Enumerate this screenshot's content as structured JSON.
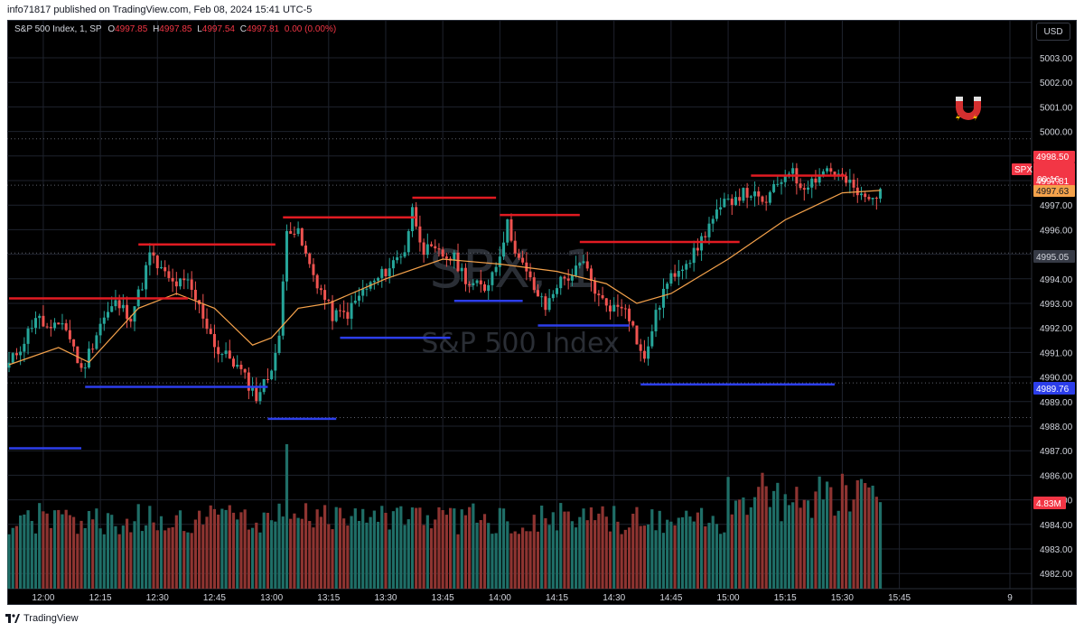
{
  "header": {
    "published": "info71817 published on TradingView.com, Feb 08, 2024 15:41 UTC-5"
  },
  "legend": {
    "symbol": "S&P 500 Index, 1, SP",
    "open_label": "O",
    "open": "4997.85",
    "high_label": "H",
    "high": "4997.85",
    "low_label": "L",
    "low": "4997.54",
    "close_label": "C",
    "close": "4997.81",
    "change": "0.00 (0.00%)"
  },
  "currency_button": "USD",
  "watermark": {
    "ticker": "SPX, 1",
    "name": "S&P 500 Index"
  },
  "footer": {
    "brand": "TradingView"
  },
  "icons": [
    "magnet-icon",
    "tradingview-logo-icon"
  ],
  "colors": {
    "up": "#26a69a",
    "down": "#ef5350",
    "ma": "#f5a24b",
    "resistance": "#e11b22",
    "support": "#2c3eea",
    "price_label": "#f23645",
    "ma_label": "#f5a24b",
    "support_label": "#2c3eea"
  },
  "chart_data": {
    "type": "candlestick",
    "x_ticks": [
      "12:00",
      "12:15",
      "12:30",
      "12:45",
      "13:00",
      "13:15",
      "13:30",
      "13:45",
      "14:00",
      "14:15",
      "14:30",
      "14:45",
      "15:00",
      "15:15",
      "15:30",
      "15:45",
      "9"
    ],
    "y_ticks": [
      "5003.00",
      "5002.00",
      "5001.00",
      "5000.00",
      "4999.00",
      "4998.00",
      "4997.00",
      "4996.00",
      "4995.00",
      "4994.00",
      "4993.00",
      "4992.00",
      "4991.00",
      "4990.00",
      "4989.00",
      "4988.00",
      "4987.00",
      "4986.00",
      "4985.00",
      "4984.00",
      "4983.00",
      "4982.00"
    ],
    "ylim": [
      4981.5,
      5003.6
    ],
    "y_tick_values": [
      5003,
      5002,
      5001,
      5000,
      4999,
      4998,
      4997,
      4996,
      4995,
      4994,
      4993,
      4992,
      4991,
      4990,
      4989,
      4988,
      4987,
      4986,
      4985,
      4984,
      4983,
      4982
    ],
    "price_path": [
      [
        "11:51",
        4990.5
      ],
      [
        "11:55",
        4991.5
      ],
      [
        "11:58",
        4992.5
      ],
      [
        "12:02",
        4991.8
      ],
      [
        "12:05",
        4992.3
      ],
      [
        "12:08",
        4991.2
      ],
      [
        "12:10",
        4990.2
      ],
      [
        "12:12",
        4991.0
      ],
      [
        "12:15",
        4992.2
      ],
      [
        "12:19",
        4993.0
      ],
      [
        "12:23",
        4992.5
      ],
      [
        "12:26",
        4993.8
      ],
      [
        "12:28",
        4995.0
      ],
      [
        "12:30",
        4994.5
      ],
      [
        "12:34",
        4993.8
      ],
      [
        "12:38",
        4993.8
      ],
      [
        "12:42",
        4992.5
      ],
      [
        "12:46",
        4991.0
      ],
      [
        "12:49",
        4990.8
      ],
      [
        "12:52",
        4990.2
      ],
      [
        "12:56",
        4989.2
      ],
      [
        "12:59",
        4990.0
      ],
      [
        "13:02",
        4991.5
      ],
      [
        "13:04",
        4996.2
      ],
      [
        "13:07",
        4995.8
      ],
      [
        "13:10",
        4994.5
      ],
      [
        "13:13",
        4993.5
      ],
      [
        "13:16",
        4992.5
      ],
      [
        "13:20",
        4992.6
      ],
      [
        "13:24",
        4993.5
      ],
      [
        "13:28",
        4994.0
      ],
      [
        "13:31",
        4994.5
      ],
      [
        "13:35",
        4995.2
      ],
      [
        "13:37",
        4996.8
      ],
      [
        "13:40",
        4995.2
      ],
      [
        "13:44",
        4995.0
      ],
      [
        "13:48",
        4994.8
      ],
      [
        "13:52",
        4993.8
      ],
      [
        "13:56",
        4993.6
      ],
      [
        "13:59",
        4994.6
      ],
      [
        "14:02",
        4996.2
      ],
      [
        "14:05",
        4994.8
      ],
      [
        "14:09",
        4993.6
      ],
      [
        "14:12",
        4992.8
      ],
      [
        "14:15",
        4993.8
      ],
      [
        "14:19",
        4994.2
      ],
      [
        "14:22",
        4994.6
      ],
      [
        "14:26",
        4993.2
      ],
      [
        "14:30",
        4992.8
      ],
      [
        "14:33",
        4993.0
      ],
      [
        "14:36",
        4991.5
      ],
      [
        "14:38",
        4990.6
      ],
      [
        "14:40",
        4992.0
      ],
      [
        "14:43",
        4993.5
      ],
      [
        "14:47",
        4994.5
      ],
      [
        "14:51",
        4995.0
      ],
      [
        "14:55",
        4996.2
      ],
      [
        "14:59",
        4997.0
      ],
      [
        "15:02",
        4997.4
      ],
      [
        "15:06",
        4997.5
      ],
      [
        "15:09",
        4997.0
      ],
      [
        "15:12",
        4997.6
      ],
      [
        "15:16",
        4998.5
      ],
      [
        "15:19",
        4997.8
      ],
      [
        "15:22",
        4998.0
      ],
      [
        "15:26",
        4998.5
      ],
      [
        "15:29",
        4998.2
      ],
      [
        "15:32",
        4997.8
      ],
      [
        "15:35",
        4997.3
      ],
      [
        "15:38",
        4997.2
      ],
      [
        "15:40",
        4997.8
      ]
    ],
    "moving_average": [
      [
        "11:51",
        4990.5
      ],
      [
        "12:04",
        4991.2
      ],
      [
        "12:12",
        4990.6
      ],
      [
        "12:25",
        4992.8
      ],
      [
        "12:35",
        4993.4
      ],
      [
        "12:45",
        4992.8
      ],
      [
        "12:55",
        4991.3
      ],
      [
        "13:00",
        4991.6
      ],
      [
        "13:07",
        4992.8
      ],
      [
        "13:15",
        4993.0
      ],
      [
        "13:30",
        4994.0
      ],
      [
        "13:45",
        4994.8
      ],
      [
        "14:00",
        4994.6
      ],
      [
        "14:15",
        4994.3
      ],
      [
        "14:28",
        4993.8
      ],
      [
        "14:36",
        4993.0
      ],
      [
        "14:45",
        4993.4
      ],
      [
        "15:00",
        4994.8
      ],
      [
        "15:15",
        4996.4
      ],
      [
        "15:30",
        4997.5
      ],
      [
        "15:40",
        4997.6
      ]
    ],
    "resistance_levels": [
      {
        "from": "11:51",
        "to": "12:38",
        "y": 4993.2
      },
      {
        "from": "12:25",
        "to": "13:01",
        "y": 4995.4
      },
      {
        "from": "13:03",
        "to": "13:38",
        "y": 4996.5
      },
      {
        "from": "13:37",
        "to": "13:59",
        "y": 4997.3
      },
      {
        "from": "14:00",
        "to": "14:21",
        "y": 4996.6
      },
      {
        "from": "14:21",
        "to": "15:03",
        "y": 4995.5
      },
      {
        "from": "15:06",
        "to": "15:31",
        "y": 4998.2
      }
    ],
    "support_levels": [
      {
        "from": "11:51",
        "to": "12:10",
        "y": 4987.1
      },
      {
        "from": "12:11",
        "to": "12:59",
        "y": 4989.6
      },
      {
        "from": "12:59",
        "to": "13:17",
        "y": 4988.3
      },
      {
        "from": "13:18",
        "to": "13:47",
        "y": 4991.6
      },
      {
        "from": "13:48",
        "to": "14:06",
        "y": 4993.1
      },
      {
        "from": "14:10",
        "to": "14:34",
        "y": 4992.1
      },
      {
        "from": "14:37",
        "to": "15:28",
        "y": 4989.7
      }
    ],
    "volume_label": "4.83M",
    "price_labels": {
      "high": "4998.50",
      "symbol": "SPX",
      "last": "4997.81",
      "countdown": "00:16",
      "ma_value": "4997.63",
      "crosshair_level": "4995.05",
      "support_value": "4989.76"
    }
  }
}
